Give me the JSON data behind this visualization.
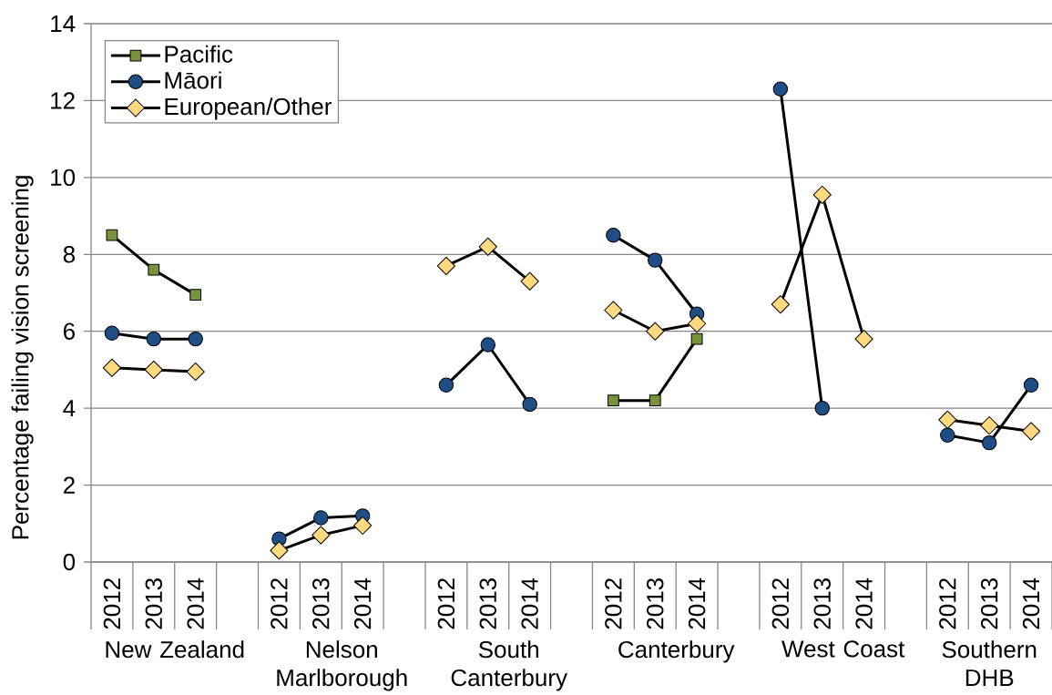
{
  "chart_data": {
    "type": "line",
    "ylabel": "Percentage failing vision screening",
    "categories": [
      "2012",
      "2013",
      "2014",
      null,
      "2012",
      "2013",
      "2014",
      null,
      "2012",
      "2013",
      "2014",
      null,
      "2012",
      "2013",
      "2014",
      null,
      "2012",
      "2013",
      "2014",
      null,
      "2012",
      "2013",
      "2014"
    ],
    "annotations": [
      "New Zealand",
      "Nelson Marlborough",
      "South Canterbury",
      "Canterbury",
      "West Coast",
      "Southern DHB"
    ],
    "series": [
      {
        "name": "Pacific",
        "color": "#77933c",
        "marker": "square",
        "values": [
          8.5,
          7.6,
          6.95,
          null,
          null,
          null,
          null,
          null,
          null,
          null,
          null,
          null,
          4.2,
          4.2,
          5.8,
          null,
          null,
          null,
          null,
          null,
          null,
          null,
          null
        ]
      },
      {
        "name": "Māori",
        "color": "#1f4e86",
        "marker": "circle",
        "values": [
          5.95,
          5.8,
          5.8,
          null,
          0.6,
          1.15,
          1.2,
          null,
          4.6,
          5.65,
          4.1,
          null,
          8.5,
          7.85,
          6.45,
          null,
          12.3,
          4.0,
          null,
          null,
          3.3,
          3.1,
          4.6
        ]
      },
      {
        "name": "European/Other",
        "color": "#ffd97f",
        "marker": "diamond",
        "values": [
          5.05,
          5.0,
          4.95,
          null,
          0.3,
          0.7,
          0.95,
          null,
          7.7,
          8.2,
          7.3,
          null,
          6.55,
          6.0,
          6.2,
          null,
          6.7,
          9.55,
          5.8,
          null,
          3.7,
          3.55,
          3.4
        ]
      }
    ],
    "ylim": [
      0,
      14
    ],
    "yticks": [
      0,
      2,
      4,
      6,
      8,
      10,
      12,
      14
    ],
    "grid": "y",
    "legend": "top left",
    "line_style": "solid"
  }
}
